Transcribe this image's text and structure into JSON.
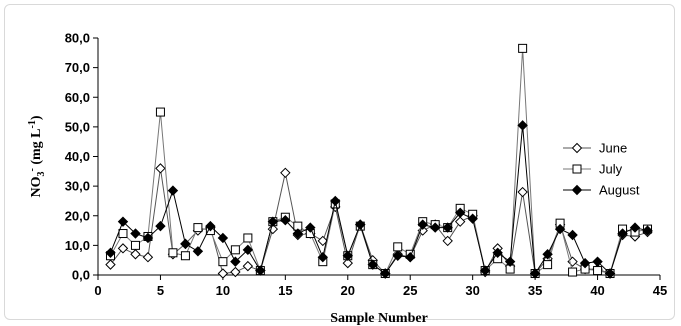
{
  "chart_data": {
    "type": "line",
    "title": "",
    "xlabel": "Sample Number",
    "ylabel": "NO3- (mg L-1)",
    "ylabel_parts": {
      "base": "NO",
      "sub": "3",
      "sup_minus": "-",
      "unit_open": " (mg L",
      "unit_sup": "-1",
      "unit_close": ")"
    },
    "xlim": [
      0,
      45
    ],
    "ylim": [
      0,
      80
    ],
    "x_ticks": [
      "0",
      "5",
      "10",
      "15",
      "20",
      "25",
      "30",
      "35",
      "40",
      "45"
    ],
    "y_ticks": [
      "0,0",
      "10,0",
      "20,0",
      "30,0",
      "40,0",
      "50,0",
      "60,0",
      "70,0",
      "80,0"
    ],
    "grid": false,
    "legend_position": "right",
    "series": [
      {
        "name": "June",
        "marker": "diamond-open",
        "color": "#000000",
        "x": [
          1,
          2,
          3,
          4,
          5,
          6,
          7,
          8,
          9,
          10,
          11,
          12,
          13,
          14,
          15,
          16,
          17,
          18,
          19,
          20,
          21,
          22,
          23,
          24,
          25,
          26,
          27,
          28,
          29,
          30,
          31,
          32,
          33,
          34,
          35,
          36,
          37,
          38,
          39,
          40,
          41,
          42,
          43,
          44
        ],
        "y": [
          3.5,
          9,
          7,
          6,
          36,
          7,
          10.5,
          15,
          16,
          0.5,
          1,
          3,
          1.5,
          15.5,
          34.5,
          13.5,
          14,
          11.5,
          23,
          4,
          17,
          5,
          0.5,
          7,
          6,
          15,
          17,
          11.5,
          18,
          20,
          1,
          9,
          3,
          28,
          0.5,
          5.5,
          17,
          4.5,
          2,
          2,
          0.5,
          13.5,
          13,
          14.5
        ]
      },
      {
        "name": "July",
        "marker": "square-open",
        "color": "#000000",
        "x": [
          1,
          2,
          3,
          4,
          5,
          6,
          7,
          8,
          9,
          10,
          11,
          12,
          13,
          14,
          15,
          16,
          17,
          18,
          19,
          20,
          21,
          22,
          23,
          24,
          25,
          26,
          27,
          28,
          29,
          30,
          31,
          32,
          33,
          34,
          35,
          36,
          37,
          38,
          39,
          40,
          41,
          42,
          43,
          44
        ],
        "y": [
          6.5,
          14,
          10,
          13,
          55,
          7.5,
          6.5,
          16,
          15,
          4.5,
          8.5,
          12.5,
          1.5,
          18,
          19.5,
          16.5,
          14,
          4.5,
          24,
          6.5,
          16.5,
          3.5,
          0.5,
          9.5,
          7,
          18,
          17,
          16,
          22.5,
          20.5,
          1.5,
          5.5,
          2,
          76.5,
          0.5,
          3.5,
          17.5,
          1,
          2,
          1.5,
          0.5,
          15.5,
          14.5,
          15.5
        ]
      },
      {
        "name": "August",
        "marker": "diamond-filled",
        "color": "#000000",
        "x": [
          1,
          2,
          3,
          4,
          5,
          6,
          7,
          8,
          9,
          10,
          11,
          12,
          13,
          14,
          15,
          16,
          17,
          18,
          19,
          20,
          21,
          22,
          23,
          24,
          25,
          26,
          27,
          28,
          29,
          30,
          31,
          32,
          33,
          34,
          35,
          36,
          37,
          38,
          39,
          40,
          41,
          42,
          43,
          44
        ],
        "y": [
          7.5,
          18,
          14,
          12.5,
          16.5,
          28.5,
          10.5,
          8,
          16.5,
          12.5,
          4.5,
          8.5,
          1.5,
          18,
          18.5,
          14,
          16,
          6,
          25,
          6.5,
          17,
          3.5,
          0.5,
          6.5,
          6,
          17,
          16,
          16,
          21,
          19,
          1.5,
          7.5,
          4.5,
          50.5,
          0.5,
          7,
          15.5,
          13.5,
          4,
          4.5,
          0.5,
          14,
          16,
          15
        ]
      }
    ]
  }
}
